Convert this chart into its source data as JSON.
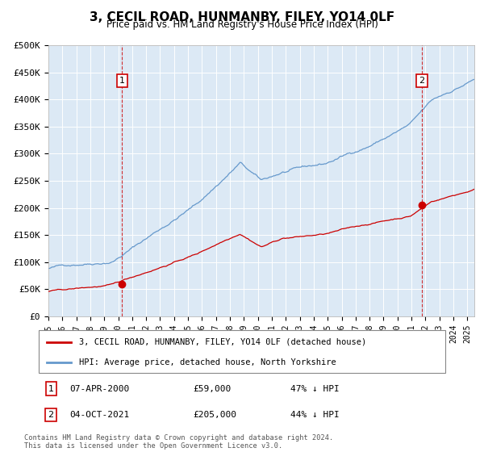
{
  "title": "3, CECIL ROAD, HUNMANBY, FILEY, YO14 0LF",
  "subtitle": "Price paid vs. HM Land Registry's House Price Index (HPI)",
  "plot_bg_color": "#dce9f5",
  "red_line_color": "#cc0000",
  "blue_line_color": "#6699cc",
  "sale1_date_num": 2000.27,
  "sale1_price": 59000,
  "sale2_date_num": 2021.75,
  "sale2_price": 205000,
  "ylim_max": 500000,
  "ylim_min": 0,
  "xlim_min": 1995.0,
  "xlim_max": 2025.5,
  "legend_red_label": "3, CECIL ROAD, HUNMANBY, FILEY, YO14 0LF (detached house)",
  "legend_blue_label": "HPI: Average price, detached house, North Yorkshire",
  "footnote": "Contains HM Land Registry data © Crown copyright and database right 2024.\nThis data is licensed under the Open Government Licence v3.0.",
  "ytick_labels": [
    "£0",
    "£50K",
    "£100K",
    "£150K",
    "£200K",
    "£250K",
    "£300K",
    "£350K",
    "£400K",
    "£450K",
    "£500K"
  ],
  "ytick_values": [
    0,
    50000,
    100000,
    150000,
    200000,
    250000,
    300000,
    350000,
    400000,
    450000,
    500000
  ],
  "sale_rows": [
    [
      "1",
      "07-APR-2000",
      "£59,000",
      "47% ↓ HPI"
    ],
    [
      "2",
      "04-OCT-2021",
      "£205,000",
      "44% ↓ HPI"
    ]
  ]
}
